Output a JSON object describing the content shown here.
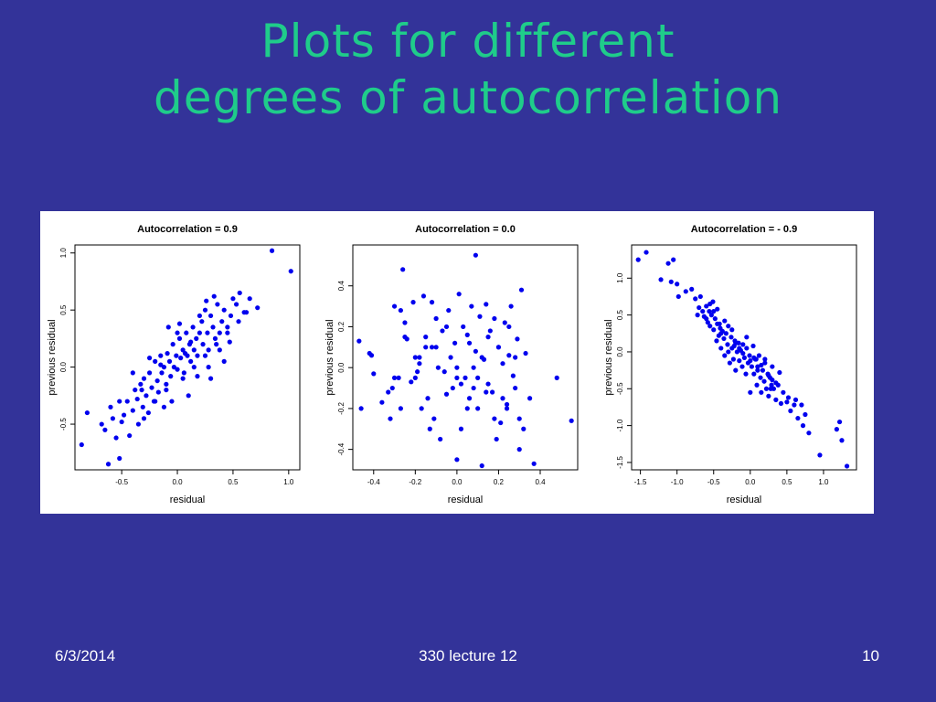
{
  "slide": {
    "title_line1": "Plots for different",
    "title_line2": "degrees of autocorrelation",
    "footer_date": "6/3/2014",
    "footer_course": "330 lecture 12",
    "footer_page": "10"
  },
  "colors": {
    "background": "#333399",
    "title": "#1fcc8a",
    "points": "#0000ee"
  },
  "chart_data": [
    {
      "type": "scatter",
      "title": "Autocorrelation = 0.9",
      "xlabel": "residual",
      "ylabel": "previous residual",
      "xlim": [
        -0.92,
        1.1
      ],
      "ylim": [
        -0.9,
        1.07
      ],
      "xticks": [
        "-0.5",
        "0.0",
        "0.5",
        "1.0"
      ],
      "xtick_values": [
        -0.5,
        0,
        0.5,
        1
      ],
      "yticks": [
        "-0.5",
        "0.0",
        "0.5",
        "1.0"
      ],
      "ytick_values": [
        -0.5,
        0,
        0.5,
        1
      ],
      "x": [
        -0.86,
        -0.81,
        -0.68,
        -0.62,
        -0.58,
        -0.55,
        -0.52,
        -0.5,
        -0.48,
        -0.45,
        -0.43,
        -0.4,
        -0.38,
        -0.36,
        -0.35,
        -0.33,
        -0.31,
        -0.3,
        -0.28,
        -0.26,
        -0.25,
        -0.23,
        -0.21,
        -0.2,
        -0.18,
        -0.17,
        -0.15,
        -0.14,
        -0.12,
        -0.1,
        -0.09,
        -0.07,
        -0.06,
        -0.04,
        -0.03,
        -0.01,
        0.0,
        0.02,
        0.03,
        0.05,
        0.06,
        0.08,
        0.09,
        0.11,
        0.12,
        0.14,
        0.15,
        0.17,
        0.18,
        0.2,
        0.22,
        0.23,
        0.25,
        0.27,
        0.28,
        0.3,
        0.32,
        0.34,
        0.36,
        0.38,
        0.4,
        0.42,
        0.45,
        0.48,
        0.5,
        0.53,
        0.56,
        0.6,
        0.65,
        0.72,
        0.85,
        1.02,
        -0.65,
        -0.6,
        -0.3,
        -0.2,
        -0.1,
        0.05,
        0.15,
        0.25,
        0.35,
        0.45,
        0.55,
        -0.4,
        -0.15,
        0.1,
        0.3,
        0.42,
        -0.25,
        0.0,
        0.2,
        0.38,
        -0.05,
        0.12,
        0.28,
        -0.32,
        0.07,
        0.47,
        0.62,
        -0.52,
        -0.08,
        0.33,
        0.18,
        -0.12,
        0.02,
        0.26
      ],
      "y": [
        -0.68,
        -0.4,
        -0.5,
        -0.85,
        -0.45,
        -0.62,
        -0.8,
        -0.48,
        -0.42,
        -0.3,
        -0.6,
        -0.38,
        -0.2,
        -0.28,
        -0.5,
        -0.15,
        -0.35,
        -0.1,
        -0.25,
        -0.4,
        -0.05,
        -0.18,
        -0.3,
        0.05,
        -0.12,
        -0.22,
        0.1,
        -0.05,
        0.0,
        -0.15,
        0.12,
        0.05,
        -0.08,
        0.2,
        0.0,
        0.1,
        -0.02,
        0.25,
        0.08,
        0.15,
        -0.05,
        0.3,
        0.1,
        0.2,
        0.05,
        0.35,
        0.15,
        0.25,
        0.1,
        0.3,
        0.4,
        0.2,
        0.5,
        0.3,
        0.15,
        0.45,
        0.35,
        0.25,
        0.55,
        0.3,
        0.4,
        0.5,
        0.35,
        0.45,
        0.6,
        0.55,
        0.65,
        0.48,
        0.6,
        0.52,
        1.02,
        0.84,
        -0.55,
        -0.35,
        -0.45,
        -0.3,
        -0.2,
        -0.1,
        0.0,
        0.1,
        0.2,
        0.3,
        0.4,
        -0.05,
        0.02,
        -0.25,
        -0.1,
        0.05,
        0.08,
        0.3,
        0.45,
        0.15,
        -0.3,
        0.22,
        0.0,
        -0.2,
        0.12,
        0.22,
        0.48,
        -0.3,
        0.35,
        0.62,
        -0.08,
        -0.35,
        0.38,
        0.58
      ]
    },
    {
      "type": "scatter",
      "title": "Autocorrelation = 0.0",
      "xlabel": "residual",
      "ylabel": "previous residual",
      "xlim": [
        -0.5,
        0.58
      ],
      "ylim": [
        -0.5,
        0.6
      ],
      "xticks": [
        "-0.4",
        "-0.2",
        "0.0",
        "0.2",
        "0.4"
      ],
      "xtick_values": [
        -0.4,
        -0.2,
        0,
        0.2,
        0.4
      ],
      "yticks": [
        "-0.4",
        "-0.2",
        "0.0",
        "0.2",
        "0.4"
      ],
      "ytick_values": [
        -0.4,
        -0.2,
        0,
        0.2,
        0.4
      ],
      "x": [
        -0.47,
        -0.46,
        -0.42,
        -0.41,
        -0.4,
        -0.36,
        -0.33,
        -0.32,
        -0.31,
        -0.3,
        -0.28,
        -0.27,
        -0.26,
        -0.25,
        -0.24,
        -0.22,
        -0.21,
        -0.2,
        -0.19,
        -0.18,
        -0.17,
        -0.16,
        -0.15,
        -0.14,
        -0.13,
        -0.12,
        -0.11,
        -0.1,
        -0.09,
        -0.08,
        -0.07,
        -0.06,
        -0.05,
        -0.04,
        -0.03,
        -0.02,
        -0.01,
        0.0,
        0.01,
        0.02,
        0.03,
        0.04,
        0.05,
        0.06,
        0.07,
        0.08,
        0.09,
        0.1,
        0.11,
        0.12,
        0.13,
        0.14,
        0.15,
        0.16,
        0.17,
        0.18,
        0.19,
        0.2,
        0.21,
        0.22,
        0.23,
        0.24,
        0.25,
        0.26,
        0.27,
        0.28,
        0.29,
        0.3,
        0.31,
        0.33,
        0.35,
        0.37,
        0.48,
        0.55,
        0.09,
        -0.27,
        -0.2,
        0.0,
        0.1,
        0.2,
        0.3,
        -0.3,
        -0.1,
        0.05,
        0.15,
        0.25,
        -0.15,
        0.0,
        0.12,
        0.22,
        -0.05,
        0.08,
        0.18,
        -0.25,
        0.02,
        0.28,
        -0.12,
        0.14,
        0.32,
        0.06,
        -0.18,
        0.24
      ],
      "y": [
        0.13,
        -0.2,
        0.07,
        0.06,
        -0.03,
        -0.17,
        -0.12,
        -0.25,
        -0.1,
        0.3,
        -0.05,
        -0.2,
        0.48,
        0.22,
        0.14,
        -0.07,
        0.32,
        0.05,
        -0.02,
        0.02,
        -0.2,
        0.35,
        0.15,
        -0.15,
        -0.3,
        0.1,
        -0.25,
        0.24,
        0.0,
        -0.35,
        0.18,
        -0.02,
        -0.13,
        0.28,
        0.05,
        -0.1,
        0.12,
        -0.45,
        0.36,
        -0.3,
        0.2,
        -0.05,
        0.16,
        -0.15,
        0.3,
        -0.1,
        0.08,
        -0.2,
        0.25,
        -0.48,
        0.04,
        0.31,
        -0.08,
        0.18,
        -0.12,
        0.24,
        -0.35,
        0.1,
        -0.27,
        0.02,
        0.22,
        -0.2,
        0.06,
        0.3,
        -0.04,
        -0.1,
        0.14,
        -0.25,
        0.38,
        0.07,
        -0.15,
        -0.47,
        -0.05,
        -0.26,
        0.55,
        0.28,
        -0.05,
        0.0,
        -0.05,
        0.1,
        -0.4,
        -0.05,
        0.1,
        -0.2,
        0.15,
        0.2,
        0.1,
        -0.05,
        0.05,
        -0.15,
        0.2,
        0.0,
        -0.25,
        0.15,
        -0.08,
        0.05,
        0.32,
        -0.12,
        -0.3,
        0.12,
        0.05,
        -0.18
      ]
    },
    {
      "type": "scatter",
      "title": "Autocorrelation = - 0.9",
      "xlabel": "residual",
      "ylabel": "previous residual",
      "xlim": [
        -1.62,
        1.45
      ],
      "ylim": [
        -1.6,
        1.45
      ],
      "xticks": [
        "-1.5",
        "-1.0",
        "-0.5",
        "0.0",
        "0.5",
        "1.0"
      ],
      "xtick_values": [
        -1.5,
        -1,
        -0.5,
        0,
        0.5,
        1
      ],
      "yticks": [
        "-1.5",
        "-1.0",
        "-0.5",
        "0.0",
        "0.5",
        "1.0"
      ],
      "ytick_values": [
        -1.5,
        -1,
        -0.5,
        0,
        0.5,
        1
      ],
      "x": [
        -1.53,
        -1.42,
        -1.22,
        -1.12,
        -1.08,
        -1.05,
        -1.0,
        -0.98,
        -0.88,
        -0.8,
        -0.75,
        -0.72,
        -0.7,
        -0.68,
        -0.65,
        -0.63,
        -0.6,
        -0.58,
        -0.56,
        -0.55,
        -0.53,
        -0.51,
        -0.5,
        -0.48,
        -0.46,
        -0.45,
        -0.43,
        -0.41,
        -0.4,
        -0.38,
        -0.36,
        -0.35,
        -0.33,
        -0.31,
        -0.3,
        -0.28,
        -0.26,
        -0.25,
        -0.23,
        -0.21,
        -0.2,
        -0.18,
        -0.16,
        -0.15,
        -0.13,
        -0.11,
        -0.1,
        -0.08,
        -0.06,
        -0.05,
        -0.03,
        -0.01,
        0.0,
        0.02,
        0.04,
        0.05,
        0.07,
        0.09,
        0.1,
        0.12,
        0.14,
        0.15,
        0.17,
        0.19,
        0.2,
        0.22,
        0.24,
        0.25,
        0.27,
        0.29,
        0.3,
        0.32,
        0.35,
        0.38,
        0.42,
        0.45,
        0.5,
        0.55,
        0.6,
        0.62,
        0.65,
        0.7,
        0.72,
        0.75,
        0.8,
        0.95,
        1.18,
        1.22,
        1.25,
        1.32,
        -0.6,
        -0.5,
        -0.4,
        -0.3,
        -0.2,
        -0.1,
        0.0,
        0.1,
        0.2,
        0.3,
        0.4,
        -0.45,
        -0.25,
        -0.05,
        0.15,
        0.35,
        -0.55,
        -0.35,
        -0.15,
        0.05,
        0.25,
        -0.42,
        -0.22,
        0.08,
        0.28,
        0.52
      ],
      "y": [
        1.25,
        1.35,
        0.98,
        1.2,
        0.95,
        1.25,
        0.92,
        0.75,
        0.82,
        0.85,
        0.72,
        0.5,
        0.6,
        0.75,
        0.55,
        0.48,
        0.62,
        0.4,
        0.55,
        0.35,
        0.5,
        0.68,
        0.3,
        0.45,
        0.15,
        0.38,
        0.22,
        0.32,
        0.05,
        0.28,
        0.18,
        -0.05,
        0.25,
        0.1,
        0.35,
        -0.15,
        0.2,
        0.05,
        -0.1,
        0.15,
        -0.25,
        0.0,
        0.12,
        -0.12,
        0.02,
        -0.2,
        0.1,
        -0.08,
        -0.3,
        0.05,
        -0.15,
        -0.05,
        -0.55,
        -0.2,
        0.08,
        -0.3,
        -0.1,
        -0.45,
        -0.2,
        -0.05,
        -0.35,
        -0.55,
        -0.25,
        -0.4,
        -0.1,
        -0.5,
        -0.3,
        -0.6,
        -0.35,
        -0.45,
        -0.2,
        -0.5,
        -0.65,
        -0.45,
        -0.7,
        -0.55,
        -0.68,
        -0.8,
        -0.72,
        -0.65,
        -0.9,
        -0.72,
        -1.0,
        -0.85,
        -1.1,
        -1.4,
        -1.05,
        -0.95,
        -1.2,
        -1.55,
        0.45,
        0.55,
        0.25,
        0.0,
        0.12,
        -0.02,
        -0.12,
        -0.25,
        -0.15,
        -0.38,
        -0.28,
        0.58,
        0.3,
        0.2,
        -0.18,
        -0.42,
        0.65,
        0.42,
        0.05,
        -0.08,
        -0.32,
        0.38,
        0.08,
        -0.1,
        -0.5,
        -0.62
      ]
    }
  ]
}
